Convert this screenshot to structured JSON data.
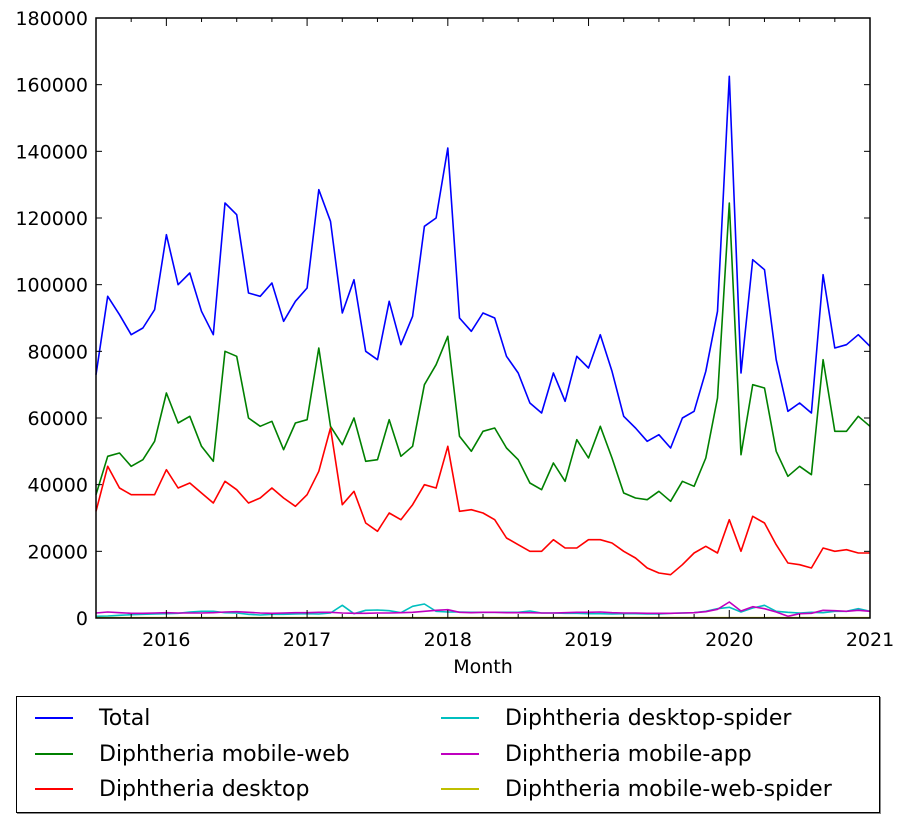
{
  "chart_data": {
    "type": "line",
    "title": "",
    "xlabel": "Month",
    "ylabel": "",
    "xlim": [
      "2015-07",
      "2021-01"
    ],
    "ylim": [
      0,
      180000
    ],
    "grid": false,
    "legend_placement": "below",
    "x_start": "2015-07",
    "x_ticks": [
      "2016",
      "2017",
      "2018",
      "2019",
      "2020",
      "2021"
    ],
    "y_ticks": [
      "0",
      "20000",
      "40000",
      "60000",
      "80000",
      "100000",
      "120000",
      "140000",
      "160000",
      "180000"
    ],
    "series": [
      {
        "name": "Total",
        "color": "#0000ff",
        "values": [
          73000,
          96500,
          91000,
          85000,
          87000,
          92500,
          115000,
          100000,
          103500,
          92000,
          85000,
          124500,
          121000,
          97500,
          96500,
          100500,
          89000,
          95000,
          99000,
          128500,
          119000,
          91500,
          101500,
          80000,
          77500,
          95000,
          82000,
          90500,
          117500,
          120000,
          141000,
          90000,
          86000,
          91500,
          90000,
          78500,
          73500,
          64500,
          61500,
          73500,
          65000,
          78500,
          75000,
          85000,
          74000,
          60500,
          57000,
          53000,
          55000,
          51000,
          60000,
          62000,
          74000,
          92000,
          162500,
          73500,
          107500,
          104500,
          77500,
          62000,
          64500,
          61500,
          103000,
          81000,
          82000,
          85000,
          81500
        ]
      },
      {
        "name": "Diphtheria mobile-web",
        "color": "#008000",
        "values": [
          37000,
          48500,
          49500,
          45500,
          47500,
          53000,
          67500,
          58500,
          60500,
          51500,
          47000,
          80000,
          78500,
          60000,
          57500,
          59000,
          50500,
          58500,
          59500,
          81000,
          57500,
          52000,
          60000,
          47000,
          47500,
          59500,
          48500,
          51500,
          70000,
          76000,
          84500,
          54500,
          50000,
          56000,
          57000,
          51000,
          47500,
          40500,
          38500,
          46500,
          41000,
          53500,
          48000,
          57500,
          48000,
          37500,
          36000,
          35500,
          38000,
          35000,
          41000,
          39500,
          48000,
          66000,
          124500,
          49000,
          70000,
          69000,
          50000,
          42500,
          45500,
          43000,
          77500,
          56000,
          56000,
          60500,
          57500
        ]
      },
      {
        "name": "Diphtheria desktop",
        "color": "#ff0000",
        "values": [
          32000,
          45500,
          39000,
          37000,
          37000,
          37000,
          44500,
          39000,
          40500,
          37500,
          34500,
          41000,
          38500,
          34500,
          36000,
          39000,
          36000,
          33500,
          37000,
          44000,
          57000,
          34000,
          38000,
          28500,
          26000,
          31500,
          29500,
          34000,
          40000,
          39000,
          51500,
          32000,
          32500,
          31500,
          29500,
          24000,
          22000,
          20000,
          20000,
          23500,
          21000,
          21000,
          23500,
          23500,
          22500,
          20000,
          18000,
          15000,
          13500,
          13000,
          16000,
          19500,
          21500,
          19500,
          29500,
          20000,
          30500,
          28500,
          22000,
          16500,
          16000,
          15000,
          21000,
          20000,
          20500,
          19500,
          19500
        ]
      },
      {
        "name": "Diphtheria desktop-spider",
        "color": "#00bfbf",
        "values": [
          500,
          600,
          800,
          1000,
          1100,
          1200,
          1300,
          1400,
          1800,
          2000,
          2000,
          1600,
          1500,
          1100,
          900,
          1100,
          1100,
          1200,
          1300,
          1200,
          1500,
          3800,
          1300,
          2300,
          2400,
          2200,
          1600,
          3500,
          4200,
          2000,
          1800,
          1800,
          1700,
          1700,
          1700,
          1700,
          1700,
          2100,
          1500,
          1500,
          1400,
          1400,
          1300,
          1300,
          1200,
          1300,
          1300,
          1200,
          1200,
          1400,
          1500,
          1600,
          2000,
          2800,
          3200,
          1800,
          3000,
          3800,
          2000,
          1700,
          1500,
          1700,
          1600,
          2000,
          2000,
          2800,
          2000
        ]
      },
      {
        "name": "Diphtheria mobile-app",
        "color": "#bf00bf",
        "values": [
          1500,
          1800,
          1600,
          1400,
          1400,
          1500,
          1600,
          1500,
          1500,
          1500,
          1600,
          1800,
          1900,
          1700,
          1500,
          1400,
          1500,
          1600,
          1600,
          1700,
          1700,
          1500,
          1400,
          1400,
          1500,
          1500,
          1600,
          1700,
          2000,
          2300,
          2500,
          1700,
          1600,
          1700,
          1700,
          1600,
          1600,
          1600,
          1500,
          1500,
          1600,
          1700,
          1700,
          1800,
          1600,
          1500,
          1500,
          1400,
          1400,
          1400,
          1500,
          1600,
          1900,
          2600,
          4800,
          2100,
          3400,
          2800,
          1800,
          500,
          1300,
          1400,
          2300,
          2200,
          2000,
          2300,
          2000
        ]
      },
      {
        "name": "Diphtheria mobile-web-spider",
        "color": "#bfbf00",
        "values": [
          100,
          100,
          100,
          100,
          100,
          100,
          100,
          100,
          100,
          100,
          100,
          100,
          100,
          100,
          100,
          100,
          100,
          100,
          100,
          100,
          100,
          100,
          100,
          100,
          100,
          100,
          100,
          100,
          100,
          100,
          100,
          100,
          100,
          100,
          100,
          100,
          100,
          100,
          100,
          100,
          100,
          100,
          100,
          100,
          100,
          100,
          100,
          100,
          100,
          100,
          100,
          100,
          100,
          100,
          100,
          100,
          100,
          100,
          100,
          100,
          100,
          100,
          100,
          100,
          100,
          100,
          100
        ]
      }
    ]
  }
}
